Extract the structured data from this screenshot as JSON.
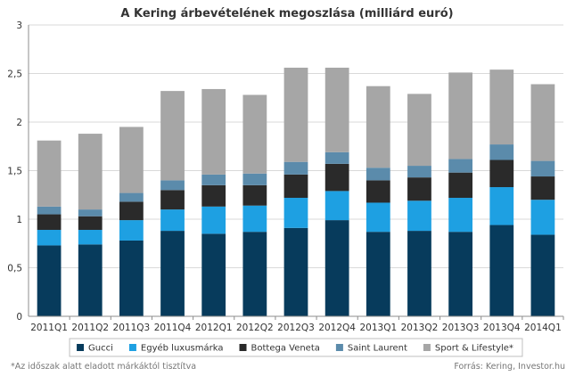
{
  "chart_data": {
    "type": "bar",
    "stacked": true,
    "title": "A Kering árbevételének megoszlása (milliárd euró)",
    "categories": [
      "2011Q1",
      "2011Q2",
      "2011Q3",
      "2011Q4",
      "2012Q1",
      "2012Q2",
      "2012Q3",
      "2012Q4",
      "2013Q1",
      "2013Q2",
      "2013Q3",
      "2013Q4",
      "2014Q1"
    ],
    "ylim": [
      0,
      3
    ],
    "y_ticks": [
      "0",
      "0,5",
      "1",
      "1,5",
      "2",
      "2,5",
      "3"
    ],
    "y_tick_values": [
      0,
      0.5,
      1,
      1.5,
      2,
      2.5,
      3
    ],
    "grid": true,
    "legend": "bottom",
    "series": [
      {
        "name": "Gucci",
        "color": "#073b5c",
        "values": [
          0.73,
          0.74,
          0.78,
          0.88,
          0.85,
          0.87,
          0.91,
          0.99,
          0.87,
          0.88,
          0.87,
          0.94,
          0.84
        ]
      },
      {
        "name": "Egyéb luxusmárka",
        "color": "#1ea0e2",
        "values": [
          0.16,
          0.15,
          0.21,
          0.22,
          0.28,
          0.27,
          0.31,
          0.3,
          0.3,
          0.31,
          0.35,
          0.39,
          0.36
        ]
      },
      {
        "name": "Bottega Veneta",
        "color": "#2a2a2a",
        "values": [
          0.16,
          0.14,
          0.19,
          0.2,
          0.22,
          0.21,
          0.24,
          0.28,
          0.23,
          0.24,
          0.26,
          0.28,
          0.24
        ]
      },
      {
        "name": "Saint Laurent",
        "color": "#5b8bab",
        "values": [
          0.08,
          0.07,
          0.09,
          0.1,
          0.11,
          0.12,
          0.13,
          0.12,
          0.13,
          0.12,
          0.14,
          0.16,
          0.16
        ]
      },
      {
        "name": "Sport & Lifestyle*",
        "color": "#a6a6a6",
        "values": [
          0.68,
          0.78,
          0.68,
          0.92,
          0.88,
          0.81,
          0.97,
          0.87,
          0.84,
          0.74,
          0.89,
          0.77,
          0.79
        ]
      }
    ]
  },
  "footnote": "*Az időszak alatt eladott márkáktól tisztítva",
  "source": "Forrás: Kering, Investor.hu",
  "colors": {
    "grid": "#d9d9d9",
    "axis": "#8c8c8c",
    "background": "#ffffff"
  }
}
